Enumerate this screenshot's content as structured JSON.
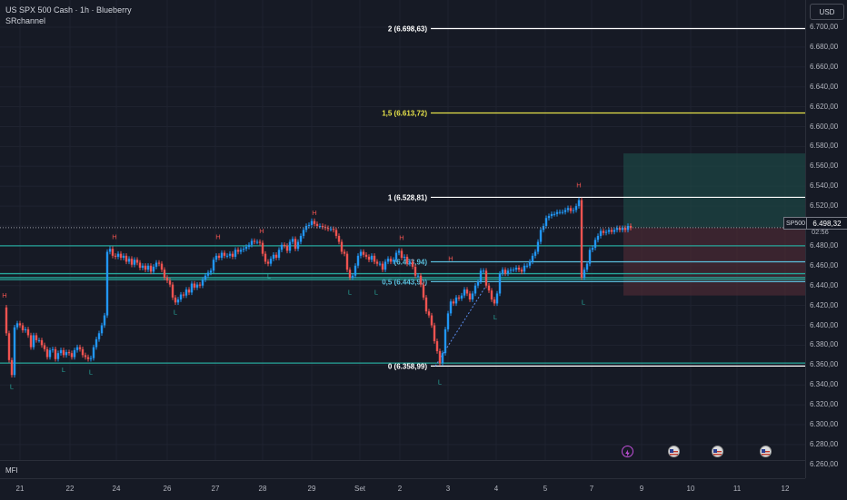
{
  "header": {
    "title": "US SPX 500 Cash · 1h · Blueberry",
    "indicator": "SRchannel"
  },
  "currency": "USD",
  "symbol_tag": "SP500",
  "last_price": "6.498,32",
  "countdown": "02:56",
  "price_axis": [
    "6.700,00",
    "6.680,00",
    "6.660,00",
    "6.640,00",
    "6.620,00",
    "6.600,00",
    "6.580,00",
    "6.560,00",
    "6.540,00",
    "6.520,00",
    "6.500,00",
    "6.480,00",
    "6.460,00",
    "6.440,00",
    "6.420,00",
    "6.400,00",
    "6.380,00",
    "6.360,00",
    "6.340,00",
    "6.320,00",
    "6.300,00",
    "6.280,00",
    "6.260,00"
  ],
  "time_axis": [
    "21",
    "22",
    "24",
    "26",
    "27",
    "28",
    "29",
    "Set",
    "2",
    "3",
    "4",
    "5",
    "7",
    "9",
    "10",
    "11",
    "12"
  ],
  "fib_labels": {
    "level_2": "2 (6.698,63)",
    "level_15": "1,5 (6.613,72)",
    "level_1": "1 (6.528,81)",
    "level_0618": "(6.463,94)",
    "level_05": "0,5 (6.443,90)",
    "level_0": "0 (6.358,99)"
  },
  "mfi_label": "MFI",
  "colors": {
    "background": "#161a25",
    "up": "#2196f3",
    "down": "#ef5350",
    "sr_line": "#26a69a",
    "fib_main": "#ffffff",
    "fib_ext": "#e6e24a",
    "fib_mid": "#5bc0de"
  },
  "chart_data": {
    "type": "candlestick",
    "title": "US SPX 500 Cash · 1h · Blueberry",
    "ylim": [
      6250,
      6710
    ],
    "x_categories": [
      "21",
      "22",
      "24",
      "26",
      "27",
      "28",
      "29",
      "Set",
      "2",
      "3",
      "4",
      "5",
      "7",
      "9",
      "10",
      "11",
      "12"
    ],
    "close_path": [
      [
        0,
        6418
      ],
      [
        2,
        6392
      ],
      [
        5,
        6365
      ],
      [
        8,
        6350
      ],
      [
        11,
        6398
      ],
      [
        14,
        6402
      ],
      [
        17,
        6400
      ],
      [
        20,
        6395
      ],
      [
        23,
        6396
      ],
      [
        26,
        6390
      ],
      [
        29,
        6378
      ],
      [
        32,
        6390
      ],
      [
        35,
        6385
      ],
      [
        38,
        6385
      ],
      [
        41,
        6380
      ],
      [
        44,
        6376
      ],
      [
        47,
        6368
      ],
      [
        50,
        6375
      ],
      [
        53,
        6376
      ],
      [
        56,
        6366
      ],
      [
        59,
        6372
      ],
      [
        62,
        6375
      ],
      [
        65,
        6370
      ],
      [
        68,
        6373
      ],
      [
        71,
        6372
      ],
      [
        74,
        6368
      ],
      [
        77,
        6375
      ],
      [
        80,
        6378
      ],
      [
        83,
        6376
      ],
      [
        86,
        6370
      ],
      [
        89,
        6368
      ],
      [
        92,
        6366
      ],
      [
        95,
        6367
      ],
      [
        98,
        6378
      ],
      [
        101,
        6386
      ],
      [
        104,
        6392
      ],
      [
        107,
        6400
      ],
      [
        110,
        6410
      ],
      [
        113,
        6474
      ],
      [
        116,
        6477
      ],
      [
        119,
        6470
      ],
      [
        122,
        6469
      ],
      [
        125,
        6472
      ],
      [
        128,
        6468
      ],
      [
        131,
        6470
      ],
      [
        134,
        6464
      ],
      [
        137,
        6467
      ],
      [
        140,
        6461
      ],
      [
        143,
        6466
      ],
      [
        146,
        6463
      ],
      [
        149,
        6458
      ],
      [
        152,
        6460
      ],
      [
        155,
        6456
      ],
      [
        158,
        6460
      ],
      [
        161,
        6454
      ],
      [
        164,
        6459
      ],
      [
        167,
        6463
      ],
      [
        170,
        6462
      ],
      [
        173,
        6456
      ],
      [
        176,
        6448
      ],
      [
        179,
        6445
      ],
      [
        182,
        6441
      ],
      [
        185,
        6428
      ],
      [
        188,
        6423
      ],
      [
        191,
        6426
      ],
      [
        194,
        6431
      ],
      [
        197,
        6430
      ],
      [
        200,
        6436
      ],
      [
        203,
        6433
      ],
      [
        206,
        6442
      ],
      [
        209,
        6438
      ],
      [
        212,
        6441
      ],
      [
        215,
        6440
      ],
      [
        218,
        6446
      ],
      [
        221,
        6450
      ],
      [
        224,
        6453
      ],
      [
        227,
        6455
      ],
      [
        230,
        6466
      ],
      [
        233,
        6470
      ],
      [
        236,
        6468
      ],
      [
        239,
        6473
      ],
      [
        242,
        6470
      ],
      [
        245,
        6470
      ],
      [
        248,
        6472
      ],
      [
        251,
        6469
      ],
      [
        254,
        6476
      ],
      [
        257,
        6474
      ],
      [
        260,
        6476
      ],
      [
        263,
        6477
      ],
      [
        266,
        6479
      ],
      [
        269,
        6481
      ],
      [
        272,
        6485
      ],
      [
        275,
        6484
      ],
      [
        278,
        6484
      ],
      [
        281,
        6483
      ],
      [
        284,
        6472
      ],
      [
        287,
        6464
      ],
      [
        290,
        6462
      ],
      [
        293,
        6467
      ],
      [
        296,
        6471
      ],
      [
        299,
        6468
      ],
      [
        302,
        6476
      ],
      [
        305,
        6481
      ],
      [
        308,
        6480
      ],
      [
        311,
        6475
      ],
      [
        314,
        6484
      ],
      [
        317,
        6487
      ],
      [
        320,
        6477
      ],
      [
        323,
        6484
      ],
      [
        326,
        6490
      ],
      [
        329,
        6496
      ],
      [
        332,
        6500
      ],
      [
        335,
        6501
      ],
      [
        338,
        6505
      ],
      [
        341,
        6502
      ],
      [
        344,
        6500
      ],
      [
        347,
        6500
      ],
      [
        350,
        6499
      ],
      [
        353,
        6498
      ],
      [
        356,
        6497
      ],
      [
        359,
        6497
      ],
      [
        362,
        6496
      ],
      [
        365,
        6490
      ],
      [
        368,
        6484
      ],
      [
        371,
        6474
      ],
      [
        374,
        6472
      ],
      [
        377,
        6456
      ],
      [
        380,
        6448
      ],
      [
        383,
        6450
      ],
      [
        386,
        6460
      ],
      [
        389,
        6470
      ],
      [
        392,
        6474
      ],
      [
        395,
        6471
      ],
      [
        398,
        6469
      ],
      [
        401,
        6466
      ],
      [
        404,
        6470
      ],
      [
        407,
        6464
      ],
      [
        410,
        6462
      ],
      [
        413,
        6462
      ],
      [
        416,
        6456
      ],
      [
        419,
        6464
      ],
      [
        422,
        6467
      ],
      [
        425,
        6464
      ],
      [
        428,
        6466
      ],
      [
        431,
        6473
      ],
      [
        434,
        6475
      ],
      [
        437,
        6468
      ],
      [
        440,
        6469
      ],
      [
        443,
        6462
      ],
      [
        446,
        6464
      ],
      [
        449,
        6459
      ],
      [
        452,
        6450
      ],
      [
        455,
        6450
      ],
      [
        458,
        6441
      ],
      [
        461,
        6428
      ],
      [
        464,
        6414
      ],
      [
        467,
        6410
      ],
      [
        470,
        6400
      ],
      [
        473,
        6384
      ],
      [
        476,
        6374
      ],
      [
        479,
        6362
      ],
      [
        482,
        6372
      ],
      [
        485,
        6396
      ],
      [
        488,
        6412
      ],
      [
        491,
        6424
      ],
      [
        494,
        6422
      ],
      [
        497,
        6428
      ],
      [
        500,
        6427
      ],
      [
        503,
        6430
      ],
      [
        506,
        6436
      ],
      [
        509,
        6432
      ],
      [
        512,
        6426
      ],
      [
        515,
        6432
      ],
      [
        518,
        6440
      ],
      [
        521,
        6444
      ],
      [
        524,
        6455
      ],
      [
        527,
        6455
      ],
      [
        530,
        6440
      ],
      [
        533,
        6435
      ],
      [
        536,
        6426
      ],
      [
        539,
        6422
      ],
      [
        542,
        6432
      ],
      [
        545,
        6452
      ],
      [
        548,
        6456
      ],
      [
        551,
        6452
      ],
      [
        554,
        6455
      ],
      [
        557,
        6456
      ],
      [
        560,
        6456
      ],
      [
        563,
        6458
      ],
      [
        566,
        6456
      ],
      [
        569,
        6454
      ],
      [
        572,
        6460
      ],
      [
        575,
        6460
      ],
      [
        578,
        6464
      ],
      [
        581,
        6470
      ],
      [
        584,
        6474
      ],
      [
        587,
        6484
      ],
      [
        590,
        6496
      ],
      [
        593,
        6500
      ],
      [
        596,
        6508
      ],
      [
        599,
        6510
      ],
      [
        602,
        6512
      ],
      [
        605,
        6512
      ],
      [
        608,
        6514
      ],
      [
        611,
        6514
      ],
      [
        614,
        6514
      ],
      [
        617,
        6516
      ],
      [
        620,
        6518
      ],
      [
        623,
        6515
      ],
      [
        626,
        6516
      ],
      [
        629,
        6520
      ],
      [
        632,
        6526
      ],
      [
        635,
        6448
      ],
      [
        638,
        6456
      ],
      [
        641,
        6462
      ],
      [
        644,
        6476
      ],
      [
        647,
        6478
      ],
      [
        650,
        6486
      ],
      [
        653,
        6490
      ],
      [
        656,
        6495
      ],
      [
        659,
        6493
      ],
      [
        662,
        6494
      ],
      [
        665,
        6496
      ],
      [
        668,
        6494
      ],
      [
        671,
        6496
      ],
      [
        674,
        6498
      ],
      [
        677,
        6496
      ],
      [
        680,
        6498
      ],
      [
        683,
        6496
      ],
      [
        686,
        6500
      ],
      [
        689,
        6498
      ]
    ],
    "support_resistance": [
      6480,
      6452,
      6448,
      6446,
      6362
    ],
    "fib_levels": [
      {
        "label": "2 (6.698,63)",
        "value": 6698.63
      },
      {
        "label": "1,5 (6.613,72)",
        "value": 6613.72
      },
      {
        "label": "1 (6.528,81)",
        "value": 6528.81
      },
      {
        "label": "(6.463,94)",
        "value": 6463.94
      },
      {
        "label": "0,5 (6.443,90)",
        "value": 6443.9
      },
      {
        "label": "0 (6.358,99)",
        "value": 6358.99
      }
    ],
    "position_tool": {
      "entry": 6498.32,
      "target": 6573,
      "stop": 6430
    },
    "pivots": [
      {
        "t": "H",
        "x": 0,
        "v": 6425
      },
      {
        "t": "L",
        "x": 8,
        "v": 6345
      },
      {
        "t": "L",
        "x": 65,
        "v": 6362
      },
      {
        "t": "L",
        "x": 95,
        "v": 6360
      },
      {
        "t": "H",
        "x": 121,
        "v": 6484
      },
      {
        "t": "L",
        "x": 188,
        "v": 6420
      },
      {
        "t": "H",
        "x": 235,
        "v": 6484
      },
      {
        "t": "H",
        "x": 283,
        "v": 6490
      },
      {
        "t": "L",
        "x": 291,
        "v": 6456
      },
      {
        "t": "H",
        "x": 341,
        "v": 6508
      },
      {
        "t": "L",
        "x": 380,
        "v": 6440
      },
      {
        "t": "H",
        "x": 437,
        "v": 6483
      },
      {
        "t": "L",
        "x": 409,
        "v": 6440
      },
      {
        "t": "H",
        "x": 491,
        "v": 6462
      },
      {
        "t": "L",
        "x": 479,
        "v": 6350
      },
      {
        "t": "L",
        "x": 540,
        "v": 6415
      },
      {
        "t": "H",
        "x": 632,
        "v": 6536
      },
      {
        "t": "L",
        "x": 637,
        "v": 6430
      }
    ]
  }
}
